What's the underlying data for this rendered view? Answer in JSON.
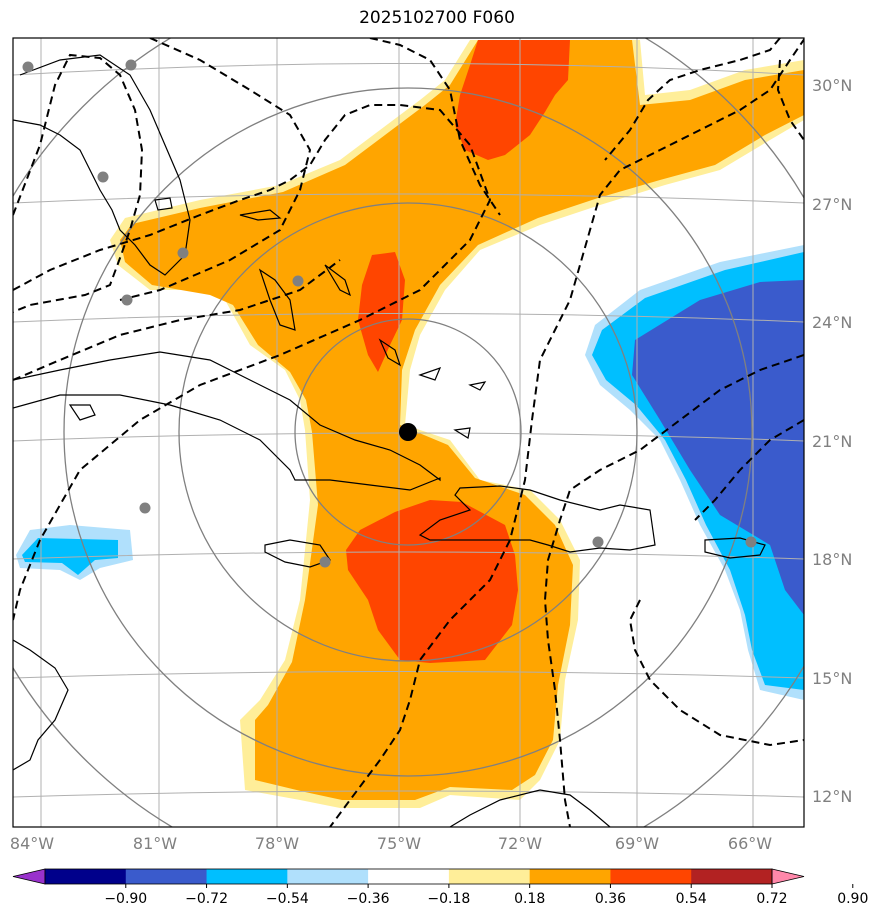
{
  "title": "2025102700 F060",
  "map": {
    "lat_labels": [
      "30°N",
      "27°N",
      "24°N",
      "21°N",
      "18°N",
      "15°N",
      "12°N"
    ],
    "lon_labels": [
      "84°W",
      "81°W",
      "78°W",
      "75°W",
      "72°W",
      "69°W",
      "66°W"
    ],
    "extent": {
      "lon_min": -84.7,
      "lon_max": -64.6,
      "lat_min": 11.6,
      "lat_max": 31.6
    },
    "center_marker": {
      "lon": -74.8,
      "lat": 21.2
    },
    "station_markers": [
      {
        "lon": -84.4,
        "lat": 30.4
      },
      {
        "lon": -81.6,
        "lat": 30.4
      },
      {
        "lon": -82.5,
        "lat": 27.7
      },
      {
        "lon": -80.4,
        "lat": 25.8
      },
      {
        "lon": -81.4,
        "lat": 24.6
      },
      {
        "lon": -77.4,
        "lat": 25.0
      },
      {
        "lon": -81.4,
        "lat": 19.3
      },
      {
        "lon": -76.8,
        "lat": 17.9
      },
      {
        "lon": -69.9,
        "lat": 18.4
      },
      {
        "lon": -66.0,
        "lat": 18.4
      }
    ]
  },
  "colorbar": {
    "ticks": [
      "−0.90",
      "−0.72",
      "−0.54",
      "−0.36",
      "−0.18",
      "0.18",
      "0.36",
      "0.54",
      "0.72",
      "0.90"
    ],
    "colors": [
      "#9932cc",
      "#00008b",
      "#3a5bcc",
      "#00bfff",
      "#b0e0fc",
      "#ffffff",
      "#ffee99",
      "#ffa500",
      "#ff4500",
      "#b22222",
      "#ff88aa"
    ]
  }
}
